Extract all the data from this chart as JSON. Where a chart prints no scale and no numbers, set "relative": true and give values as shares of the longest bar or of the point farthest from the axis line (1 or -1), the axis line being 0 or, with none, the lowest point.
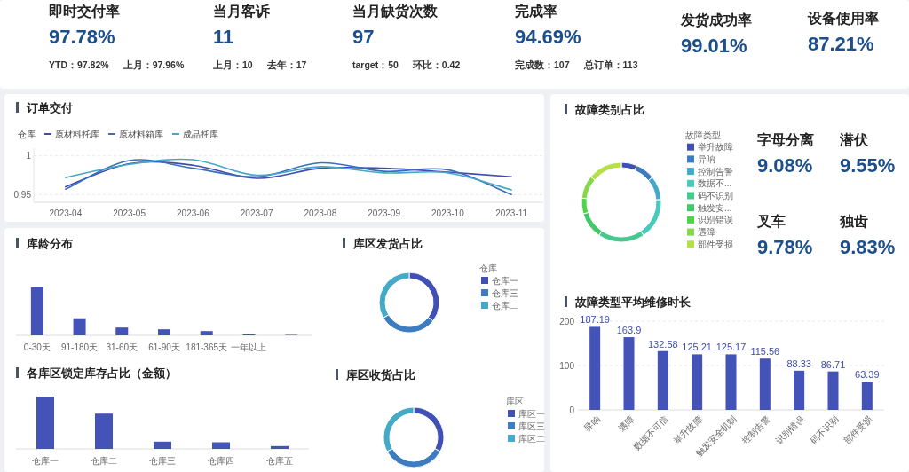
{
  "chart_data": [
    {
      "type": "other",
      "title": "即时交付率",
      "annotations": [
        "97.78%",
        "YTD：97.82%",
        "上月：97.96%"
      ]
    },
    {
      "type": "other",
      "title": "当月客诉",
      "annotations": [
        "11",
        "上月：10",
        "去年：17"
      ]
    },
    {
      "type": "other",
      "title": "当月缺货次数",
      "annotations": [
        "97",
        "target：50",
        "环比：0.42"
      ]
    },
    {
      "type": "other",
      "title": "完成率",
      "annotations": [
        "94.69%",
        "完成数：107",
        "总订单：113"
      ]
    },
    {
      "type": "other",
      "title": "发货成功率",
      "annotations": [
        "99.01%"
      ]
    },
    {
      "type": "other",
      "title": "设备使用率",
      "annotations": [
        "87.21%"
      ]
    },
    {
      "type": "line",
      "title": "订单交付",
      "legend_title": "仓库",
      "legend": "top left",
      "grid": "y",
      "categories": [
        "2023-04",
        "2023-05",
        "2023-06",
        "2023-07",
        "2023-08",
        "2023-09",
        "2023-10",
        "2023-11"
      ],
      "ylim": [
        0.94,
        1.01
      ],
      "yticks": [
        0.95,
        1
      ],
      "series": [
        {
          "name": "原材料托库",
          "color": "#3f4db0",
          "values": [
            0.96,
            0.99,
            0.988,
            0.971,
            0.984,
            0.984,
            0.979,
            0.973
          ]
        },
        {
          "name": "原材料箱库",
          "color": "#3a6fb8",
          "values": [
            0.957,
            0.994,
            0.984,
            0.973,
            0.991,
            0.98,
            0.982,
            0.95
          ]
        },
        {
          "name": "成品托库",
          "color": "#46a8c6",
          "values": [
            0.972,
            0.989,
            0.995,
            0.975,
            0.986,
            0.978,
            0.978,
            0.956
          ]
        }
      ]
    },
    {
      "type": "donut",
      "title": "故障类别占比",
      "legend_title": "故障类型",
      "legend": "right",
      "categories": [
        "举升故障",
        "异响",
        "控制告警",
        "数据不...",
        "码不识别",
        "触发安...",
        "识别错误",
        "遇障",
        "部件受损"
      ],
      "values": [
        6.3,
        7.9,
        9.7,
        16.7,
        18.9,
        10.8,
        6.4,
        9.4,
        13.9
      ],
      "colors": [
        "#4050b5",
        "#3d7cc0",
        "#45a9c8",
        "#48cbbd",
        "#45c98f",
        "#42c96a",
        "#4ed44a",
        "#84d84a",
        "#b5e04a"
      ]
    },
    {
      "type": "other",
      "title": "字母分离",
      "annotations": [
        "9.08%"
      ]
    },
    {
      "type": "other",
      "title": "潜伏",
      "annotations": [
        "9.55%"
      ]
    },
    {
      "type": "other",
      "title": "叉车",
      "annotations": [
        "9.78%"
      ]
    },
    {
      "type": "other",
      "title": "独齿",
      "annotations": [
        "9.83%"
      ]
    },
    {
      "type": "bar",
      "title": "库龄分布",
      "relative": true,
      "color": "#4353b7",
      "categories": [
        "0-30天",
        "91-180天",
        "31-60天",
        "61-90天",
        "181-365天",
        "一年以上",
        null
      ],
      "values": [
        1,
        0.356,
        0.163,
        0.126,
        0.089,
        0.022,
        0.01
      ]
    },
    {
      "type": "donut",
      "title": "库区发货占比",
      "legend_title": "仓库",
      "legend": "right",
      "categories": [
        "仓库一",
        "仓库三",
        "仓库二"
      ],
      "values": [
        35.5,
        31,
        33.5
      ],
      "colors": [
        "#4050b5",
        "#3d7cc0",
        "#45a9c8"
      ]
    },
    {
      "type": "bar",
      "title": "各库区锁定库存占比（金额）",
      "relative": true,
      "color": "#4353b7",
      "categories": [
        "仓库一",
        "仓库二",
        "仓库三",
        "仓库四",
        "仓库五"
      ],
      "values": [
        1,
        0.675,
        0.139,
        0.127,
        0.054
      ]
    },
    {
      "type": "donut",
      "title": "库区收货占比",
      "legend_title": "库区",
      "legend": "right",
      "categories": [
        "库区一",
        "库区三",
        "库区二"
      ],
      "values": [
        32.8,
        34.4,
        32.8
      ],
      "colors": [
        "#4050b5",
        "#3d7cc0",
        "#45a9c8"
      ]
    },
    {
      "type": "bar",
      "title": "故障类型平均维修时长",
      "grid": "y",
      "data_labels": true,
      "color": "#4353b7",
      "categories": [
        "异响",
        "遇障",
        "数据不可信",
        "举升故障",
        "触发安全机制",
        "控制告警",
        "识别错误",
        "码不识别",
        "部件受损"
      ],
      "values": [
        187.19,
        163.9,
        132.58,
        125.21,
        125.17,
        115.56,
        88.33,
        86.71,
        63.39
      ],
      "ylim": [
        0,
        200
      ],
      "yticks": [
        0,
        100,
        200
      ]
    }
  ]
}
